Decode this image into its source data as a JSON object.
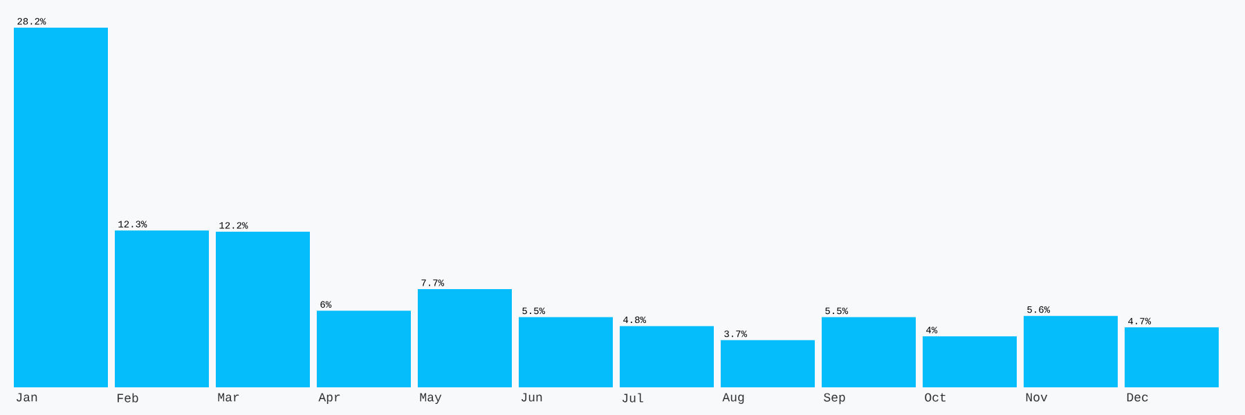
{
  "chart_data": {
    "type": "bar",
    "categories": [
      "Jan",
      "Feb",
      "Mar",
      "Apr",
      "May",
      "Jun",
      "Jul",
      "Aug",
      "Sep",
      "Oct",
      "Nov",
      "Dec"
    ],
    "values": [
      28.2,
      12.3,
      12.2,
      6,
      7.7,
      5.5,
      4.8,
      3.7,
      5.5,
      4,
      5.6,
      4.7
    ],
    "value_labels": [
      "28.2%",
      "12.3%",
      "12.2%",
      "6%",
      "7.7%",
      "5.5%",
      "4.8%",
      "3.7%",
      "5.5%",
      "4%",
      "5.6%",
      "4.7%"
    ],
    "color": "#05bdfa"
  }
}
